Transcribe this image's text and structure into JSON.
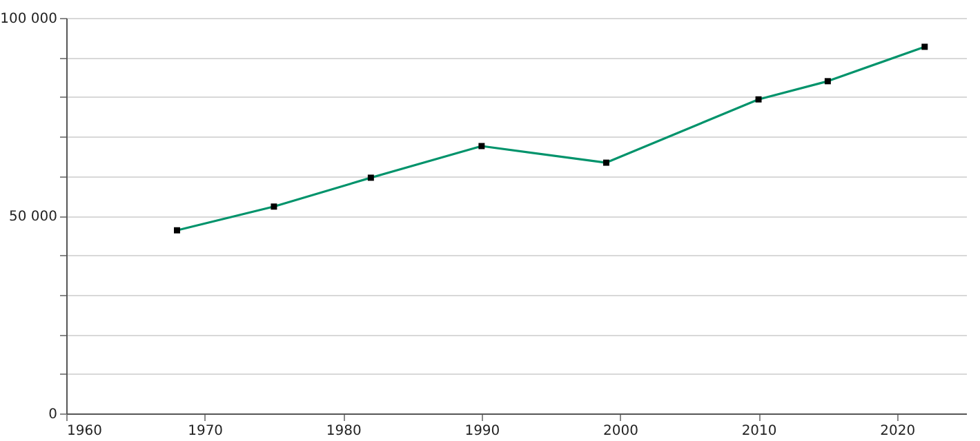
{
  "chart_data": {
    "type": "line",
    "x": [
      1968,
      1975,
      1982,
      1990,
      1999,
      2010,
      2015,
      2022
    ],
    "series": [
      {
        "color": "#00936b",
        "values": [
          46300,
          52300,
          59600,
          67600,
          63400,
          79400,
          84000,
          92700
        ]
      }
    ],
    "xlim": [
      1960,
      2025
    ],
    "xticks": [
      1960,
      1970,
      1980,
      1990,
      2000,
      2010,
      2020
    ],
    "ylim": [
      0,
      100000
    ],
    "yticks": [
      {
        "value": 0,
        "label": "0"
      },
      {
        "value": 10000,
        "label": null
      },
      {
        "value": 20000,
        "label": null
      },
      {
        "value": 30000,
        "label": null
      },
      {
        "value": 40000,
        "label": null
      },
      {
        "value": 50000,
        "label": "50 000"
      },
      {
        "value": 60000,
        "label": null
      },
      {
        "value": 70000,
        "label": null
      },
      {
        "value": 80000,
        "label": null
      },
      {
        "value": 90000,
        "label": null
      },
      {
        "value": 100000,
        "label": "100 000"
      }
    ],
    "grid": "y",
    "marker": "square",
    "line_style": "solid"
  }
}
